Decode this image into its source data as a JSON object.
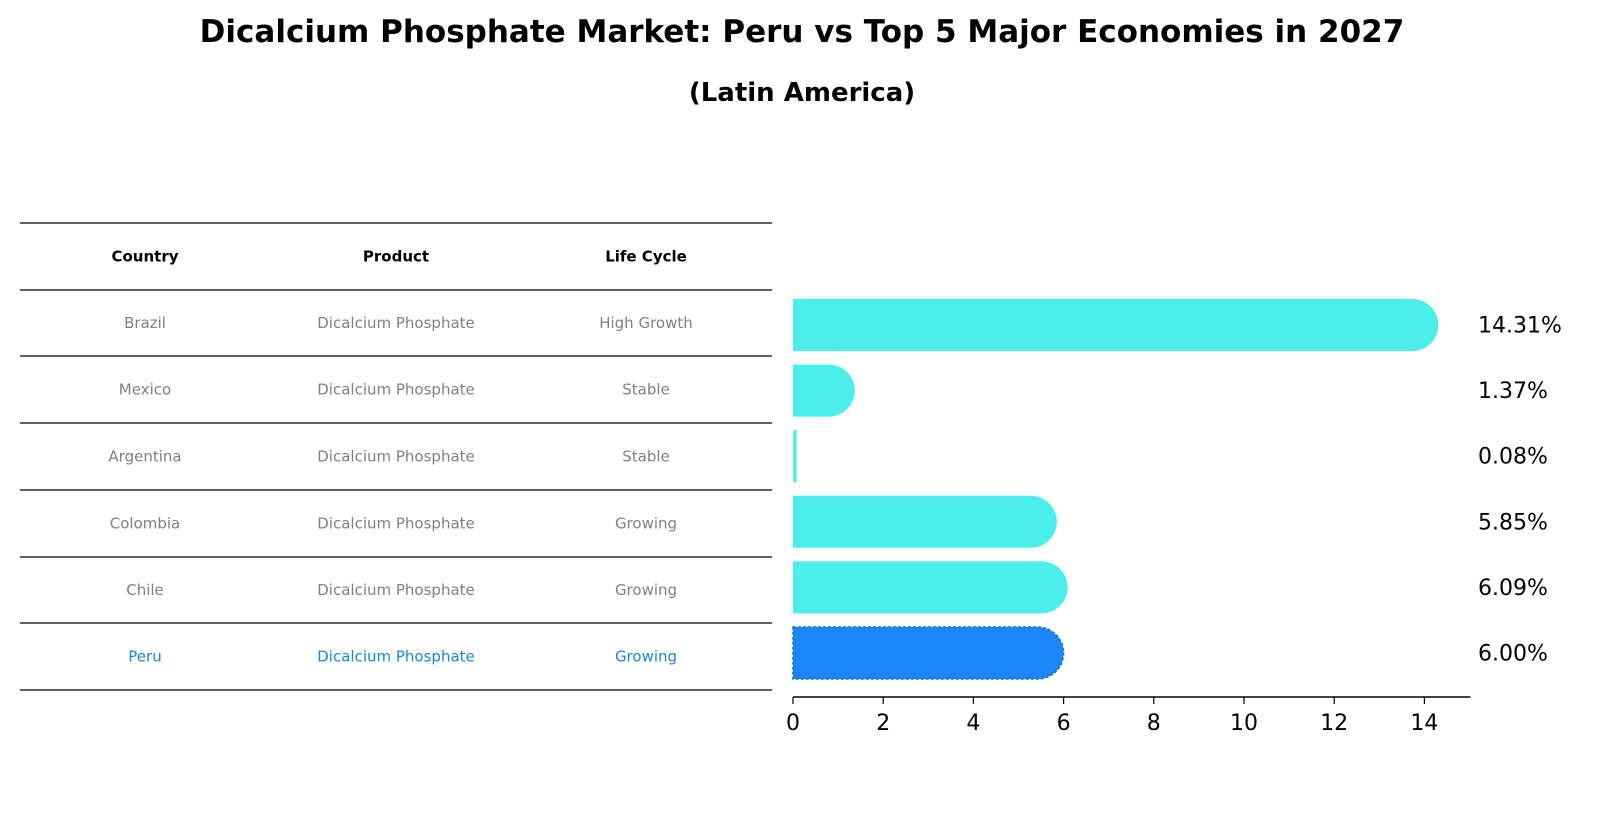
{
  "title": "Dicalcium Phosphate Market: Peru vs Top 5 Major Economies in 2027",
  "subtitle": "(Latin America)",
  "table": {
    "headers": [
      "Country",
      "Product",
      "Life Cycle"
    ],
    "rows": [
      {
        "country": "Brazil",
        "product": "Dicalcium Phosphate",
        "life_cycle": "High Growth",
        "highlight": false
      },
      {
        "country": "Mexico",
        "product": "Dicalcium Phosphate",
        "life_cycle": "Stable",
        "highlight": false
      },
      {
        "country": "Argentina",
        "product": "Dicalcium Phosphate",
        "life_cycle": "Stable",
        "highlight": false
      },
      {
        "country": "Colombia",
        "product": "Dicalcium Phosphate",
        "life_cycle": "Growing",
        "highlight": false
      },
      {
        "country": "Chile",
        "product": "Dicalcium Phosphate",
        "life_cycle": "Growing",
        "highlight": false
      },
      {
        "country": "Peru",
        "product": "Dicalcium Phosphate",
        "life_cycle": "Growing",
        "highlight": true
      }
    ]
  },
  "chart_data": {
    "type": "bar",
    "orientation": "horizontal",
    "categories": [
      "Brazil",
      "Mexico",
      "Argentina",
      "Colombia",
      "Chile",
      "Peru"
    ],
    "values": [
      14.31,
      1.37,
      0.08,
      5.85,
      6.09,
      6.0
    ],
    "value_labels": [
      "14.31%",
      "1.37%",
      "0.08%",
      "5.85%",
      "6.09%",
      "6.00%"
    ],
    "xlim": [
      0,
      15
    ],
    "xticks": [
      0,
      2,
      4,
      6,
      8,
      10,
      12,
      14
    ],
    "xlabel": "",
    "ylabel": "",
    "grid": false,
    "highlight_category": "Peru"
  },
  "colors": {
    "bar": "#4aeeea",
    "highlight_bar": "#1a86f7",
    "highlight_text": "#1a86d6",
    "muted_text": "#808080",
    "line": "#000000"
  }
}
